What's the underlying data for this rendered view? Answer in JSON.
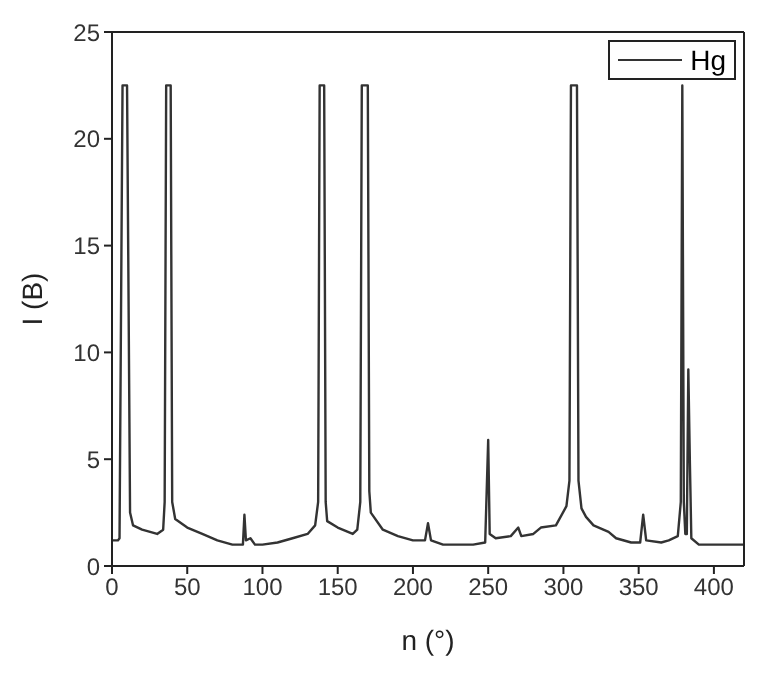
{
  "chart_data": {
    "type": "line",
    "xlabel": "n (°)",
    "ylabel": "I (B)",
    "xlim": [
      0,
      420
    ],
    "xticks": [
      0,
      50,
      100,
      150,
      200,
      250,
      300,
      350,
      400
    ],
    "ylim": [
      0,
      25
    ],
    "yticks": [
      0,
      5,
      10,
      15,
      20,
      25
    ],
    "legend": "top right",
    "marker": "none",
    "line_style": "solid",
    "series": [
      {
        "name": "Hg",
        "color": "#333333",
        "x": [
          0,
          4,
          5,
          7,
          10,
          12,
          14,
          20,
          30,
          34,
          35,
          36,
          39,
          40,
          42,
          50,
          60,
          70,
          80,
          87,
          88,
          89,
          92,
          95,
          100,
          110,
          120,
          130,
          135,
          137,
          138,
          141,
          142,
          143,
          150,
          160,
          163,
          165,
          166,
          170,
          171,
          172,
          180,
          190,
          200,
          208,
          210,
          212,
          220,
          240,
          248,
          250,
          251,
          255,
          265,
          270,
          272,
          280,
          285,
          295,
          302,
          304,
          305,
          309,
          310,
          312,
          315,
          320,
          330,
          335,
          345,
          351,
          353,
          355,
          365,
          370,
          376,
          378,
          379,
          380,
          381,
          382,
          383,
          384,
          385,
          390,
          420
        ],
        "values": [
          1.2,
          1.2,
          1.3,
          22.5,
          22.5,
          2.5,
          1.9,
          1.7,
          1.5,
          1.7,
          3,
          22.5,
          22.5,
          3,
          2.2,
          1.8,
          1.5,
          1.2,
          1.0,
          1.0,
          2.4,
          1.2,
          1.3,
          1.0,
          1.0,
          1.1,
          1.3,
          1.5,
          1.9,
          3,
          22.5,
          22.5,
          3.0,
          2.1,
          1.8,
          1.5,
          1.7,
          3,
          22.5,
          22.5,
          3.5,
          2.5,
          1.7,
          1.4,
          1.2,
          1.2,
          2.0,
          1.2,
          1.0,
          1.0,
          1.1,
          5.9,
          1.5,
          1.3,
          1.4,
          1.8,
          1.4,
          1.5,
          1.8,
          1.9,
          2.8,
          4,
          22.5,
          22.5,
          4,
          2.7,
          2.3,
          1.9,
          1.6,
          1.3,
          1.1,
          1.1,
          2.4,
          1.2,
          1.1,
          1.2,
          1.4,
          3,
          22.5,
          3,
          1.5,
          1.5,
          9.2,
          5,
          1.3,
          1.0,
          1.0
        ]
      }
    ]
  }
}
